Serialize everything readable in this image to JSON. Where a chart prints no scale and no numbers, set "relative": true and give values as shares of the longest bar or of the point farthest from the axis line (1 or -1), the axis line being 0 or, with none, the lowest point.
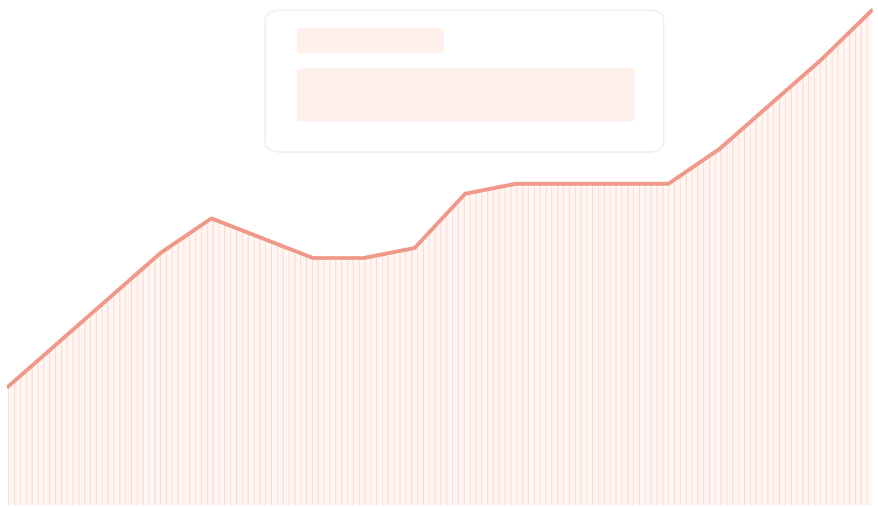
{
  "chart_data": {
    "type": "area",
    "relative": true,
    "categories": [
      null,
      null,
      null,
      null,
      null,
      null,
      null,
      null,
      null,
      null,
      null,
      null,
      null,
      null,
      null,
      null,
      null,
      null
    ],
    "series": [
      {
        "color": "#f0998a",
        "values": [
          0.24,
          0.33,
          0.42,
          0.51,
          0.58,
          0.54,
          0.5,
          0.5,
          0.52,
          0.63,
          0.65,
          0.65,
          0.65,
          0.65,
          0.72,
          0.81,
          0.9,
          1.0
        ]
      }
    ],
    "grid": false,
    "legend": false
  }
}
